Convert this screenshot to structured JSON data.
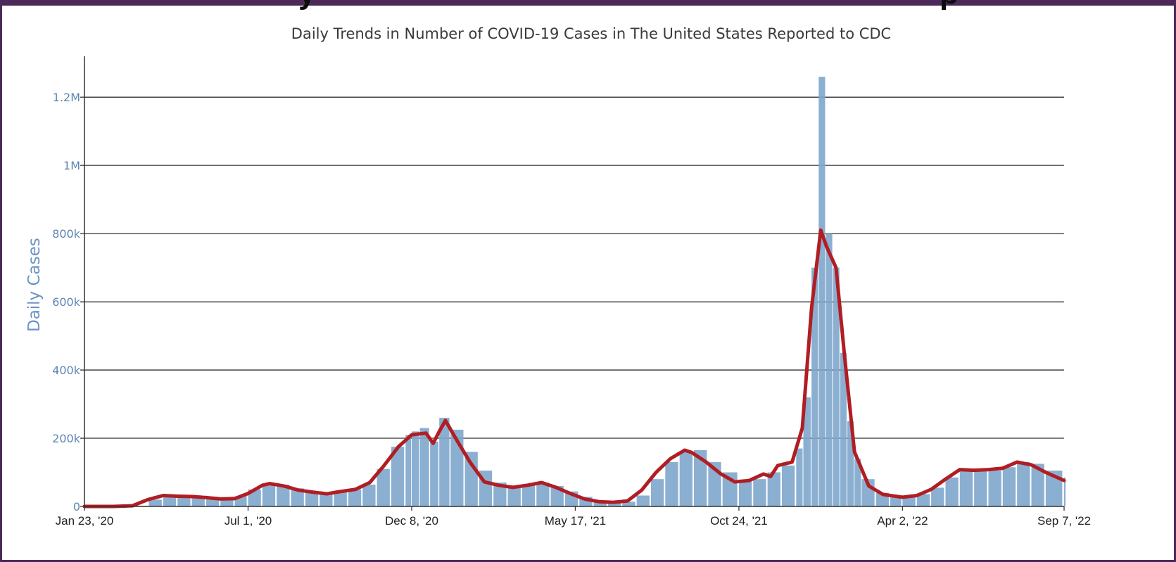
{
  "header": {
    "partial_title": "y",
    "partial_title_right": "p"
  },
  "chart_data": {
    "type": "bar",
    "title": "Daily Trends in Number of COVID-19 Cases in The United States Reported to CDC",
    "xlabel": "",
    "ylabel": "Daily Cases",
    "ylim": [
      0,
      1320000
    ],
    "yticks": [
      {
        "value": 0,
        "label": "0"
      },
      {
        "value": 200000,
        "label": "200k"
      },
      {
        "value": 400000,
        "label": "400k"
      },
      {
        "value": 600000,
        "label": "600k"
      },
      {
        "value": 800000,
        "label": "800k"
      },
      {
        "value": 1000000,
        "label": "1M"
      },
      {
        "value": 1200000,
        "label": "1.2M"
      }
    ],
    "xticks": [
      {
        "date": "2020-01-23",
        "label": "Jan 23, '20"
      },
      {
        "date": "2020-07-01",
        "label": "Jul 1, '20"
      },
      {
        "date": "2020-12-08",
        "label": "Dec 8, '20"
      },
      {
        "date": "2021-05-17",
        "label": "May 17, '21"
      },
      {
        "date": "2021-10-24",
        "label": "Oct 24, '21"
      },
      {
        "date": "2022-04-02",
        "label": "Apr 2, '22"
      },
      {
        "date": "2022-09-07",
        "label": "Sep 7, '22"
      }
    ],
    "xrange": [
      "2020-01-23",
      "2022-09-07"
    ],
    "grid": true,
    "colors": {
      "bars": "#7ea6cc",
      "average": "#b01e23"
    },
    "series": [
      {
        "kind": "bar",
        "points": [
          [
            "2020-01-23",
            0
          ],
          [
            "2020-02-20",
            0
          ],
          [
            "2020-03-12",
            2000
          ],
          [
            "2020-03-26",
            20000
          ],
          [
            "2020-04-09",
            32000
          ],
          [
            "2020-04-23",
            30000
          ],
          [
            "2020-05-07",
            27000
          ],
          [
            "2020-05-21",
            24000
          ],
          [
            "2020-06-04",
            21000
          ],
          [
            "2020-06-18",
            30000
          ],
          [
            "2020-07-01",
            50000
          ],
          [
            "2020-07-15",
            67000
          ],
          [
            "2020-07-29",
            64000
          ],
          [
            "2020-08-12",
            53000
          ],
          [
            "2020-08-26",
            43000
          ],
          [
            "2020-09-09",
            36000
          ],
          [
            "2020-09-23",
            44000
          ],
          [
            "2020-10-07",
            50000
          ],
          [
            "2020-10-21",
            64000
          ],
          [
            "2020-11-04",
            110000
          ],
          [
            "2020-11-18",
            175000
          ],
          [
            "2020-12-02",
            210000
          ],
          [
            "2020-12-08",
            220000
          ],
          [
            "2020-12-16",
            230000
          ],
          [
            "2020-12-26",
            190000
          ],
          [
            "2021-01-04",
            260000
          ],
          [
            "2021-01-15",
            225000
          ],
          [
            "2021-01-29",
            160000
          ],
          [
            "2021-02-12",
            105000
          ],
          [
            "2021-02-26",
            70000
          ],
          [
            "2021-03-12",
            58000
          ],
          [
            "2021-03-26",
            62000
          ],
          [
            "2021-04-09",
            70000
          ],
          [
            "2021-04-23",
            60000
          ],
          [
            "2021-05-07",
            44000
          ],
          [
            "2021-05-21",
            28000
          ],
          [
            "2021-06-04",
            16000
          ],
          [
            "2021-06-18",
            12000
          ],
          [
            "2021-07-02",
            14000
          ],
          [
            "2021-07-16",
            32000
          ],
          [
            "2021-07-30",
            80000
          ],
          [
            "2021-08-13",
            130000
          ],
          [
            "2021-08-27",
            160000
          ],
          [
            "2021-09-10",
            165000
          ],
          [
            "2021-09-24",
            130000
          ],
          [
            "2021-10-08",
            100000
          ],
          [
            "2021-10-24",
            75000
          ],
          [
            "2021-11-07",
            80000
          ],
          [
            "2021-11-21",
            100000
          ],
          [
            "2021-12-05",
            120000
          ],
          [
            "2021-12-19",
            170000
          ],
          [
            "2021-12-26",
            320000
          ],
          [
            "2022-01-03",
            700000
          ],
          [
            "2022-01-10",
            1260000
          ],
          [
            "2022-01-17",
            800000
          ],
          [
            "2022-01-24",
            700000
          ],
          [
            "2022-01-31",
            450000
          ],
          [
            "2022-02-07",
            250000
          ],
          [
            "2022-02-14",
            140000
          ],
          [
            "2022-02-21",
            80000
          ],
          [
            "2022-03-07",
            40000
          ],
          [
            "2022-03-21",
            30000
          ],
          [
            "2022-04-02",
            30000
          ],
          [
            "2022-04-16",
            36000
          ],
          [
            "2022-04-30",
            55000
          ],
          [
            "2022-05-14",
            85000
          ],
          [
            "2022-05-28",
            110000
          ],
          [
            "2022-06-11",
            110000
          ],
          [
            "2022-06-25",
            105000
          ],
          [
            "2022-07-09",
            115000
          ],
          [
            "2022-07-23",
            130000
          ],
          [
            "2022-08-06",
            125000
          ],
          [
            "2022-08-20",
            105000
          ],
          [
            "2022-09-07",
            85000
          ]
        ]
      },
      {
        "kind": "line",
        "points": [
          [
            "2020-01-23",
            0
          ],
          [
            "2020-02-20",
            0
          ],
          [
            "2020-03-10",
            2000
          ],
          [
            "2020-03-25",
            20000
          ],
          [
            "2020-04-09",
            32000
          ],
          [
            "2020-04-23",
            30000
          ],
          [
            "2020-05-07",
            29000
          ],
          [
            "2020-05-21",
            26000
          ],
          [
            "2020-06-04",
            22000
          ],
          [
            "2020-06-18",
            23000
          ],
          [
            "2020-07-01",
            38000
          ],
          [
            "2020-07-15",
            62000
          ],
          [
            "2020-07-22",
            67000
          ],
          [
            "2020-08-05",
            60000
          ],
          [
            "2020-08-19",
            48000
          ],
          [
            "2020-09-02",
            42000
          ],
          [
            "2020-09-16",
            37000
          ],
          [
            "2020-09-30",
            44000
          ],
          [
            "2020-10-14",
            50000
          ],
          [
            "2020-10-28",
            70000
          ],
          [
            "2020-11-11",
            120000
          ],
          [
            "2020-11-25",
            175000
          ],
          [
            "2020-12-08",
            210000
          ],
          [
            "2020-12-22",
            215000
          ],
          [
            "2020-12-29",
            185000
          ],
          [
            "2021-01-04",
            220000
          ],
          [
            "2021-01-10",
            252000
          ],
          [
            "2021-01-20",
            200000
          ],
          [
            "2021-02-03",
            130000
          ],
          [
            "2021-02-17",
            72000
          ],
          [
            "2021-03-03",
            62000
          ],
          [
            "2021-03-17",
            56000
          ],
          [
            "2021-03-31",
            62000
          ],
          [
            "2021-04-14",
            70000
          ],
          [
            "2021-04-28",
            56000
          ],
          [
            "2021-05-12",
            38000
          ],
          [
            "2021-05-26",
            22000
          ],
          [
            "2021-06-09",
            14000
          ],
          [
            "2021-06-23",
            12000
          ],
          [
            "2021-07-07",
            16000
          ],
          [
            "2021-07-21",
            48000
          ],
          [
            "2021-08-04",
            100000
          ],
          [
            "2021-08-18",
            140000
          ],
          [
            "2021-09-01",
            165000
          ],
          [
            "2021-09-08",
            158000
          ],
          [
            "2021-09-22",
            130000
          ],
          [
            "2021-10-06",
            96000
          ],
          [
            "2021-10-20",
            72000
          ],
          [
            "2021-11-03",
            76000
          ],
          [
            "2021-11-17",
            95000
          ],
          [
            "2021-11-24",
            88000
          ],
          [
            "2021-12-01",
            120000
          ],
          [
            "2021-12-15",
            130000
          ],
          [
            "2021-12-25",
            230000
          ],
          [
            "2022-01-03",
            580000
          ],
          [
            "2022-01-12",
            810000
          ],
          [
            "2022-01-18",
            760000
          ],
          [
            "2022-01-27",
            700000
          ],
          [
            "2022-02-04",
            450000
          ],
          [
            "2022-02-14",
            160000
          ],
          [
            "2022-02-28",
            60000
          ],
          [
            "2022-03-14",
            35000
          ],
          [
            "2022-04-02",
            27000
          ],
          [
            "2022-04-16",
            32000
          ],
          [
            "2022-04-30",
            50000
          ],
          [
            "2022-05-14",
            80000
          ],
          [
            "2022-05-28",
            108000
          ],
          [
            "2022-06-11",
            106000
          ],
          [
            "2022-06-25",
            108000
          ],
          [
            "2022-07-09",
            112000
          ],
          [
            "2022-07-23",
            130000
          ],
          [
            "2022-08-06",
            122000
          ],
          [
            "2022-08-20",
            100000
          ],
          [
            "2022-09-07",
            76000
          ]
        ]
      }
    ]
  }
}
